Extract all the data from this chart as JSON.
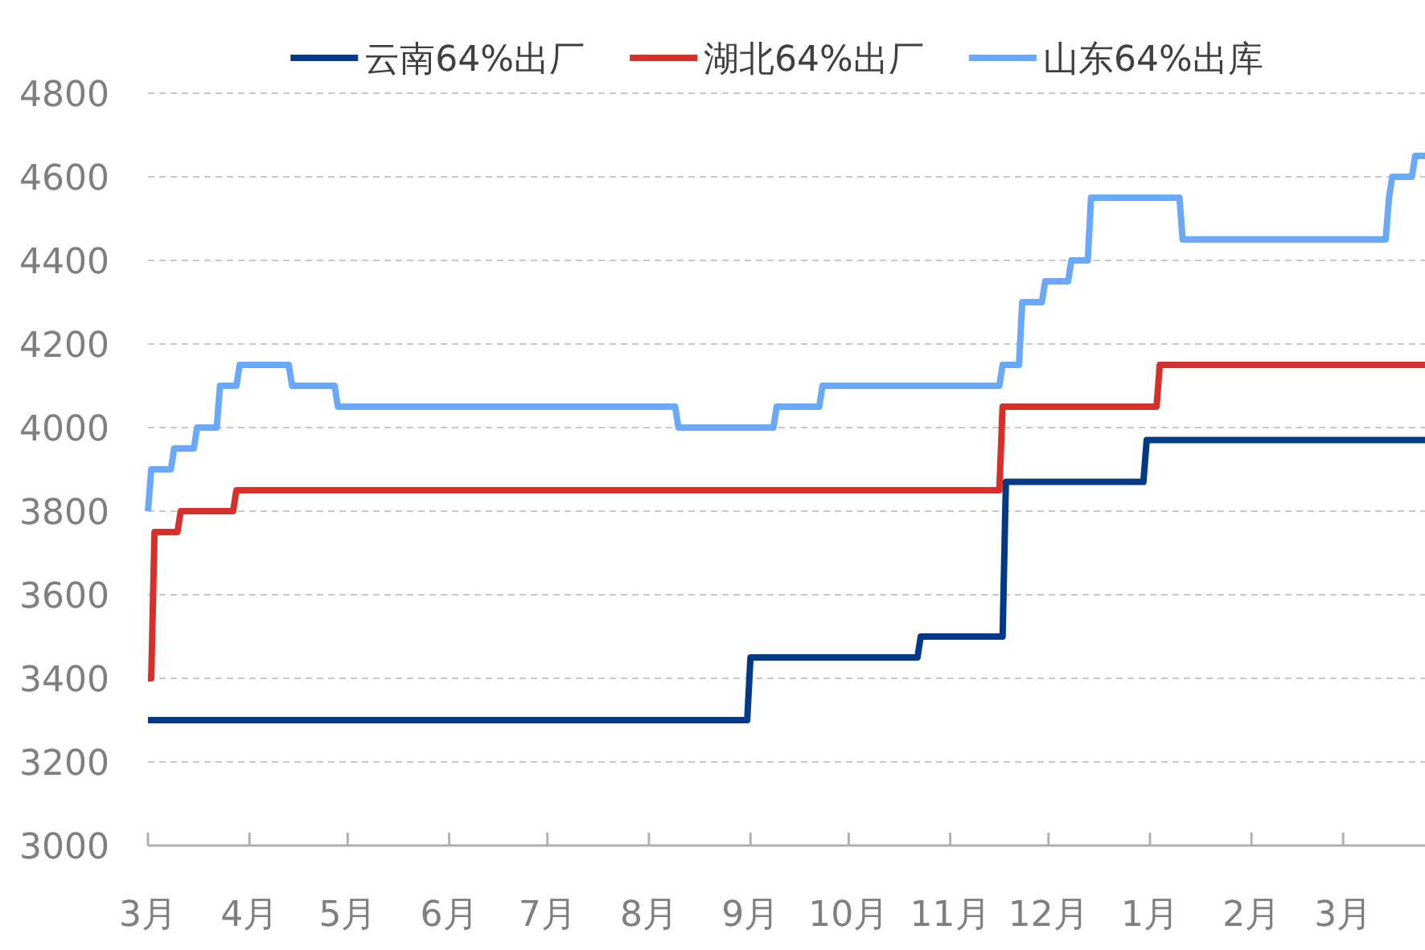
{
  "chart_data": {
    "type": "line",
    "legend": "top",
    "grid": "y",
    "marker": "none",
    "line_style": "solid",
    "ylim": [
      3000,
      4800
    ],
    "yticks": [
      3000,
      3200,
      3400,
      3600,
      3800,
      4000,
      4200,
      4400,
      4600,
      4800
    ],
    "categories": [
      "3月",
      null,
      null,
      null,
      null,
      null,
      null,
      null,
      null,
      null,
      null,
      null,
      null,
      null,
      null,
      null,
      null,
      null,
      null,
      null,
      null,
      null,
      null,
      null,
      null,
      null,
      null,
      null,
      null,
      null,
      null,
      "4月",
      null,
      null,
      null,
      null,
      null,
      null,
      null,
      null,
      null,
      null,
      null,
      null,
      null,
      null,
      null,
      null,
      null,
      null,
      null,
      null,
      null,
      null,
      null,
      null,
      null,
      null,
      null,
      null,
      null,
      "5月",
      null,
      null,
      null,
      null,
      null,
      null,
      null,
      null,
      null,
      null,
      null,
      null,
      null,
      null,
      null,
      null,
      null,
      null,
      null,
      null,
      null,
      null,
      null,
      null,
      null,
      null,
      null,
      null,
      null,
      null,
      "6月",
      null,
      null,
      null,
      null,
      null,
      null,
      null,
      null,
      null,
      null,
      null,
      null,
      null,
      null,
      null,
      null,
      null,
      null,
      null,
      null,
      null,
      null,
      null,
      null,
      null,
      null,
      null,
      null,
      null,
      "7月",
      null,
      null,
      null,
      null,
      null,
      null,
      null,
      null,
      null,
      null,
      null,
      null,
      null,
      null,
      null,
      null,
      null,
      null,
      null,
      null,
      null,
      null,
      null,
      null,
      null,
      null,
      null,
      null,
      null,
      null,
      "8月",
      null,
      null,
      null,
      null,
      null,
      null,
      null,
      null,
      null,
      null,
      null,
      null,
      null,
      null,
      null,
      null,
      null,
      null,
      null,
      null,
      null,
      null,
      null,
      null,
      null,
      null,
      null,
      null,
      null,
      null,
      "9月",
      null,
      null,
      null,
      null,
      null,
      null,
      null,
      null,
      null,
      null,
      null,
      null,
      null,
      null,
      null,
      null,
      null,
      null,
      null,
      null,
      null,
      null,
      null,
      null,
      null,
      null,
      null,
      null,
      null,
      "10月",
      null,
      null,
      null,
      null,
      null,
      null,
      null,
      null,
      null,
      null,
      null,
      null,
      null,
      null,
      null,
      null,
      null,
      null,
      null,
      null,
      null,
      null,
      null,
      null,
      null,
      null,
      null,
      null,
      null,
      null,
      "11月",
      null,
      null,
      null,
      null,
      null,
      null,
      null,
      null,
      null,
      null,
      null,
      null,
      null,
      null,
      null,
      null,
      null,
      null,
      null,
      null,
      null,
      null,
      null,
      null,
      null,
      null,
      null,
      null,
      null,
      "12月",
      null,
      null,
      null,
      null,
      null,
      null,
      null,
      null,
      null,
      null,
      null,
      null,
      null,
      null,
      null,
      null,
      null,
      null,
      null,
      null,
      null,
      null,
      null,
      null,
      null,
      null,
      null,
      null,
      null,
      null,
      "1月",
      null,
      null,
      null,
      null,
      null,
      null,
      null,
      null,
      null,
      null,
      null,
      null,
      null,
      null,
      null,
      null,
      null,
      null,
      null,
      null,
      null,
      null,
      null,
      null,
      null,
      null,
      null,
      null,
      null,
      null,
      "2月",
      null,
      null,
      null,
      null,
      null,
      null,
      null,
      null,
      null,
      null,
      null,
      null,
      null,
      null,
      null,
      null,
      null,
      null,
      null,
      null,
      null,
      null,
      null,
      null,
      null,
      null,
      null,
      "3月",
      null,
      null,
      null,
      null,
      null,
      null,
      null,
      null,
      null,
      null,
      null,
      null,
      null,
      null,
      null,
      null,
      null,
      null,
      null,
      null,
      null,
      null,
      null,
      null,
      null
    ],
    "series": [
      {
        "name": "云南64%出厂",
        "color": "#023a87",
        "values": [
          3300,
          3300,
          3300,
          3300,
          3300,
          3300,
          3300,
          3300,
          3300,
          3300,
          3300,
          3300,
          3300,
          3300,
          3300,
          3300,
          3300,
          3300,
          3300,
          3300,
          3300,
          3300,
          3300,
          3300,
          3300,
          3300,
          3300,
          3300,
          3300,
          3300,
          3300,
          3300,
          3300,
          3300,
          3300,
          3300,
          3300,
          3300,
          3300,
          3300,
          3300,
          3300,
          3300,
          3300,
          3300,
          3300,
          3300,
          3300,
          3300,
          3300,
          3300,
          3300,
          3300,
          3300,
          3300,
          3300,
          3300,
          3300,
          3300,
          3300,
          3300,
          3300,
          3300,
          3300,
          3300,
          3300,
          3300,
          3300,
          3300,
          3300,
          3300,
          3300,
          3300,
          3300,
          3300,
          3300,
          3300,
          3300,
          3300,
          3300,
          3300,
          3300,
          3300,
          3300,
          3300,
          3300,
          3300,
          3300,
          3300,
          3300,
          3300,
          3300,
          3300,
          3300,
          3300,
          3300,
          3300,
          3300,
          3300,
          3300,
          3300,
          3300,
          3300,
          3300,
          3300,
          3300,
          3300,
          3300,
          3300,
          3300,
          3300,
          3300,
          3300,
          3300,
          3300,
          3300,
          3300,
          3300,
          3300,
          3300,
          3300,
          3300,
          3300,
          3300,
          3300,
          3300,
          3300,
          3300,
          3300,
          3300,
          3300,
          3300,
          3300,
          3300,
          3300,
          3300,
          3300,
          3300,
          3300,
          3300,
          3300,
          3300,
          3300,
          3300,
          3300,
          3300,
          3300,
          3300,
          3300,
          3300,
          3300,
          3300,
          3300,
          3300,
          3300,
          3300,
          3300,
          3300,
          3300,
          3300,
          3300,
          3300,
          3300,
          3300,
          3300,
          3300,
          3300,
          3300,
          3300,
          3300,
          3300,
          3300,
          3300,
          3300,
          3300,
          3300,
          3300,
          3300,
          3300,
          3300,
          3300,
          3300,
          3300,
          3300,
          3450,
          3450,
          3450,
          3450,
          3450,
          3450,
          3450,
          3450,
          3450,
          3450,
          3450,
          3450,
          3450,
          3450,
          3450,
          3450,
          3450,
          3450,
          3450,
          3450,
          3450,
          3450,
          3450,
          3450,
          3450,
          3450,
          3450,
          3450,
          3450,
          3450,
          3450,
          3450,
          3450,
          3450,
          3450,
          3450,
          3450,
          3450,
          3450,
          3450,
          3450,
          3450,
          3450,
          3450,
          3450,
          3450,
          3450,
          3450,
          3450,
          3450,
          3450,
          3450,
          3500,
          3500,
          3500,
          3500,
          3500,
          3500,
          3500,
          3500,
          3500,
          3500,
          3500,
          3500,
          3500,
          3500,
          3500,
          3500,
          3500,
          3500,
          3500,
          3500,
          3500,
          3500,
          3500,
          3500,
          3500,
          3500,
          3870,
          3870,
          3870,
          3870,
          3870,
          3870,
          3870,
          3870,
          3870,
          3870,
          3870,
          3870,
          3870,
          3870,
          3870,
          3870,
          3870,
          3870,
          3870,
          3870,
          3870,
          3870,
          3870,
          3870,
          3870,
          3870,
          3870,
          3870,
          3870,
          3870,
          3870,
          3870,
          3870,
          3870,
          3870,
          3870,
          3870,
          3870,
          3870,
          3870,
          3870,
          3870,
          3870,
          3970,
          3970,
          3970,
          3970,
          3970,
          3970,
          3970,
          3970,
          3970,
          3970,
          3970,
          3970,
          3970,
          3970,
          3970,
          3970,
          3970,
          3970,
          3970,
          3970,
          3970,
          3970,
          3970,
          3970,
          3970,
          3970,
          3970,
          3970,
          3970,
          3970,
          3970,
          3970,
          3970,
          3970,
          3970,
          3970,
          3970,
          3970,
          3970,
          3970,
          3970,
          3970,
          3970,
          3970,
          3970,
          3970,
          3970,
          3970,
          3970,
          3970,
          3970,
          3970,
          3970,
          3970,
          3970,
          3970,
          3970,
          3970,
          3970,
          3970,
          3970,
          3970,
          3970,
          3970,
          3970,
          3970,
          3970,
          3970,
          3970,
          3970,
          3970,
          3970,
          3970,
          3970,
          3970,
          3970,
          3970,
          3970,
          3970,
          3970,
          3970,
          3970,
          3970,
          3970,
          3970,
          3970
        ]
      },
      {
        "name": "湖北64%出厂",
        "color": "#d6302a",
        "values": [
          3400,
          3400,
          3750,
          3750,
          3750,
          3750,
          3750,
          3750,
          3750,
          3750,
          3800,
          3800,
          3800,
          3800,
          3800,
          3800,
          3800,
          3800,
          3800,
          3800,
          3800,
          3800,
          3800,
          3800,
          3800,
          3800,
          3800,
          3850,
          3850,
          3850,
          3850,
          3850,
          3850,
          3850,
          3850,
          3850,
          3850,
          3850,
          3850,
          3850,
          3850,
          3850,
          3850,
          3850,
          3850,
          3850,
          3850,
          3850,
          3850,
          3850,
          3850,
          3850,
          3850,
          3850,
          3850,
          3850,
          3850,
          3850,
          3850,
          3850,
          3850,
          3850,
          3850,
          3850,
          3850,
          3850,
          3850,
          3850,
          3850,
          3850,
          3850,
          3850,
          3850,
          3850,
          3850,
          3850,
          3850,
          3850,
          3850,
          3850,
          3850,
          3850,
          3850,
          3850,
          3850,
          3850,
          3850,
          3850,
          3850,
          3850,
          3850,
          3850,
          3850,
          3850,
          3850,
          3850,
          3850,
          3850,
          3850,
          3850,
          3850,
          3850,
          3850,
          3850,
          3850,
          3850,
          3850,
          3850,
          3850,
          3850,
          3850,
          3850,
          3850,
          3850,
          3850,
          3850,
          3850,
          3850,
          3850,
          3850,
          3850,
          3850,
          3850,
          3850,
          3850,
          3850,
          3850,
          3850,
          3850,
          3850,
          3850,
          3850,
          3850,
          3850,
          3850,
          3850,
          3850,
          3850,
          3850,
          3850,
          3850,
          3850,
          3850,
          3850,
          3850,
          3850,
          3850,
          3850,
          3850,
          3850,
          3850,
          3850,
          3850,
          3850,
          3850,
          3850,
          3850,
          3850,
          3850,
          3850,
          3850,
          3850,
          3850,
          3850,
          3850,
          3850,
          3850,
          3850,
          3850,
          3850,
          3850,
          3850,
          3850,
          3850,
          3850,
          3850,
          3850,
          3850,
          3850,
          3850,
          3850,
          3850,
          3850,
          3850,
          3850,
          3850,
          3850,
          3850,
          3850,
          3850,
          3850,
          3850,
          3850,
          3850,
          3850,
          3850,
          3850,
          3850,
          3850,
          3850,
          3850,
          3850,
          3850,
          3850,
          3850,
          3850,
          3850,
          3850,
          3850,
          3850,
          3850,
          3850,
          3850,
          3850,
          3850,
          3850,
          3850,
          3850,
          3850,
          3850,
          3850,
          3850,
          3850,
          3850,
          3850,
          3850,
          3850,
          3850,
          3850,
          3850,
          3850,
          3850,
          3850,
          3850,
          3850,
          3850,
          3850,
          3850,
          3850,
          3850,
          3850,
          3850,
          3850,
          3850,
          3850,
          3850,
          3850,
          3850,
          3850,
          3850,
          3850,
          3850,
          3850,
          3850,
          3850,
          3850,
          3850,
          3850,
          3850,
          3850,
          3850,
          4050,
          4050,
          4050,
          4050,
          4050,
          4050,
          4050,
          4050,
          4050,
          4050,
          4050,
          4050,
          4050,
          4050,
          4050,
          4050,
          4050,
          4050,
          4050,
          4050,
          4050,
          4050,
          4050,
          4050,
          4050,
          4050,
          4050,
          4050,
          4050,
          4050,
          4050,
          4050,
          4050,
          4050,
          4050,
          4050,
          4050,
          4050,
          4050,
          4050,
          4050,
          4050,
          4050,
          4050,
          4050,
          4050,
          4050,
          4050,
          4150,
          4150,
          4150,
          4150,
          4150,
          4150,
          4150,
          4150,
          4150,
          4150,
          4150,
          4150,
          4150,
          4150,
          4150,
          4150,
          4150,
          4150,
          4150,
          4150,
          4150,
          4150,
          4150,
          4150,
          4150,
          4150,
          4150,
          4150,
          4150,
          4150,
          4150,
          4150,
          4150,
          4150,
          4150,
          4150,
          4150,
          4150,
          4150,
          4150,
          4150,
          4150,
          4150,
          4150,
          4150,
          4150,
          4150,
          4150,
          4150,
          4150,
          4150,
          4150,
          4150,
          4150,
          4150,
          4150,
          4150,
          4150,
          4150,
          4150,
          4150,
          4150,
          4150,
          4150,
          4150,
          4150,
          4150,
          4150,
          4150,
          4150,
          4150,
          4150,
          4150,
          4150,
          4150,
          4150,
          4150,
          4150,
          4150,
          4150,
          4150,
          4150
        ]
      },
      {
        "name": "山东64%出库",
        "color": "#6aa9f9",
        "values": [
          3800,
          3900,
          3900,
          3900,
          3900,
          3900,
          3900,
          3900,
          3950,
          3950,
          3950,
          3950,
          3950,
          3950,
          3950,
          4000,
          4000,
          4000,
          4000,
          4000,
          4000,
          4000,
          4100,
          4100,
          4100,
          4100,
          4100,
          4100,
          4150,
          4150,
          4150,
          4150,
          4150,
          4150,
          4150,
          4150,
          4150,
          4150,
          4150,
          4150,
          4150,
          4150,
          4150,
          4150,
          4100,
          4100,
          4100,
          4100,
          4100,
          4100,
          4100,
          4100,
          4100,
          4100,
          4100,
          4100,
          4100,
          4100,
          4050,
          4050,
          4050,
          4050,
          4050,
          4050,
          4050,
          4050,
          4050,
          4050,
          4050,
          4050,
          4050,
          4050,
          4050,
          4050,
          4050,
          4050,
          4050,
          4050,
          4050,
          4050,
          4050,
          4050,
          4050,
          4050,
          4050,
          4050,
          4050,
          4050,
          4050,
          4050,
          4050,
          4050,
          4050,
          4050,
          4050,
          4050,
          4050,
          4050,
          4050,
          4050,
          4050,
          4050,
          4050,
          4050,
          4050,
          4050,
          4050,
          4050,
          4050,
          4050,
          4050,
          4050,
          4050,
          4050,
          4050,
          4050,
          4050,
          4050,
          4050,
          4050,
          4050,
          4050,
          4050,
          4050,
          4050,
          4050,
          4050,
          4050,
          4050,
          4050,
          4050,
          4050,
          4050,
          4050,
          4050,
          4050,
          4050,
          4050,
          4050,
          4050,
          4050,
          4050,
          4050,
          4050,
          4050,
          4050,
          4050,
          4050,
          4050,
          4050,
          4050,
          4050,
          4050,
          4050,
          4050,
          4050,
          4050,
          4050,
          4050,
          4050,
          4050,
          4050,
          4000,
          4000,
          4000,
          4000,
          4000,
          4000,
          4000,
          4000,
          4000,
          4000,
          4000,
          4000,
          4000,
          4000,
          4000,
          4000,
          4000,
          4000,
          4000,
          4000,
          4000,
          4000,
          4000,
          4000,
          4000,
          4000,
          4000,
          4000,
          4000,
          4000,
          4050,
          4050,
          4050,
          4050,
          4050,
          4050,
          4050,
          4050,
          4050,
          4050,
          4050,
          4050,
          4050,
          4050,
          4100,
          4100,
          4100,
          4100,
          4100,
          4100,
          4100,
          4100,
          4100,
          4100,
          4100,
          4100,
          4100,
          4100,
          4100,
          4100,
          4100,
          4100,
          4100,
          4100,
          4100,
          4100,
          4100,
          4100,
          4100,
          4100,
          4100,
          4100,
          4100,
          4100,
          4100,
          4100,
          4100,
          4100,
          4100,
          4100,
          4100,
          4100,
          4100,
          4100,
          4100,
          4100,
          4100,
          4100,
          4100,
          4100,
          4100,
          4100,
          4100,
          4100,
          4100,
          4100,
          4100,
          4100,
          4100,
          4150,
          4150,
          4150,
          4150,
          4150,
          4150,
          4300,
          4300,
          4300,
          4300,
          4300,
          4300,
          4300,
          4350,
          4350,
          4350,
          4350,
          4350,
          4350,
          4350,
          4350,
          4400,
          4400,
          4400,
          4400,
          4400,
          4400,
          4550,
          4550,
          4550,
          4550,
          4550,
          4550,
          4550,
          4550,
          4550,
          4550,
          4550,
          4550,
          4550,
          4550,
          4550,
          4550,
          4550,
          4550,
          4550,
          4550,
          4550,
          4550,
          4550,
          4550,
          4550,
          4550,
          4550,
          4550,
          4450,
          4450,
          4450,
          4450,
          4450,
          4450,
          4450,
          4450,
          4450,
          4450,
          4450,
          4450,
          4450,
          4450,
          4450,
          4450,
          4450,
          4450,
          4450,
          4450,
          4450,
          4450,
          4450,
          4450,
          4450,
          4450,
          4450,
          4450,
          4450,
          4450,
          4450,
          4450,
          4450,
          4450,
          4450,
          4450,
          4450,
          4450,
          4450,
          4450,
          4450,
          4450,
          4450,
          4450,
          4450,
          4450,
          4450,
          4450,
          4450,
          4450,
          4450,
          4450,
          4450,
          4450,
          4450,
          4450,
          4450,
          4450,
          4450,
          4450,
          4450,
          4450,
          4450,
          4550,
          4600,
          4600,
          4600,
          4600,
          4600,
          4600,
          4600,
          4650,
          4650,
          4650,
          4650
        ]
      }
    ]
  }
}
